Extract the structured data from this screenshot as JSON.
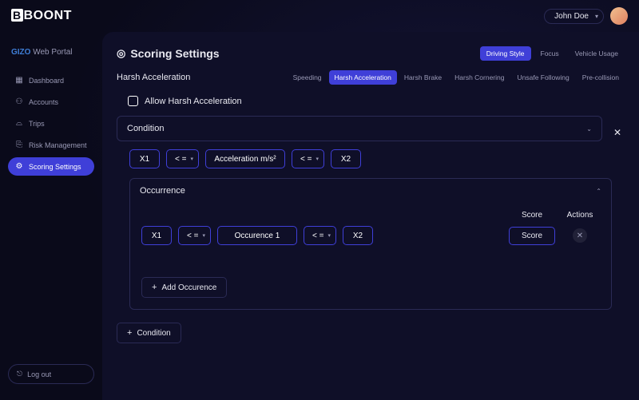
{
  "header": {
    "logo": "BOONT",
    "user_name": "John Doe"
  },
  "sidebar": {
    "portal_brand": "GIZO",
    "portal_label": "Web Portal",
    "items": [
      {
        "icon": "▦",
        "label": "Dashboard"
      },
      {
        "icon": "⚇",
        "label": "Accounts"
      },
      {
        "icon": "⌓",
        "label": "Trips"
      },
      {
        "icon": "⎘",
        "label": "Risk Management"
      },
      {
        "icon": "⚙",
        "label": "Scoring Settings"
      }
    ],
    "active_index": 4,
    "logout": "Log out"
  },
  "page": {
    "title": "Scoring Settings",
    "top_tabs": [
      "Driving Style",
      "Focus",
      "Vehicle Usage"
    ],
    "top_tab_active": 0,
    "section_title": "Harsh Acceleration",
    "sub_tabs": [
      "Speeding",
      "Harsh Acceleration",
      "Harsh Brake",
      "Harsh Cornering",
      "Unsafe Following",
      "Pre-collision"
    ],
    "sub_tab_active": 1,
    "allow_label": "Allow Harsh Acceleration",
    "condition_label": "Condition",
    "fields": {
      "x1": "X1",
      "op1": "< =",
      "metric": "Acceleration m/s²",
      "op2": "< =",
      "x2": "X2"
    },
    "occurrence": {
      "heading": "Occurrence",
      "score_heading": "Score",
      "actions_heading": "Actions",
      "row": {
        "x1": "X1",
        "op1": "< =",
        "label": "Occurence 1",
        "op2": "< =",
        "x2": "X2",
        "score": "Score"
      },
      "add_label": "Add Occurence"
    },
    "add_condition": "Condition"
  },
  "colors": {
    "accent": "#3f3fd8",
    "background": "#0a0a1a",
    "panel": "#0f0f28",
    "border": "#2a2a55",
    "text": "#e8e8f0",
    "text_dim": "#9999b5"
  }
}
